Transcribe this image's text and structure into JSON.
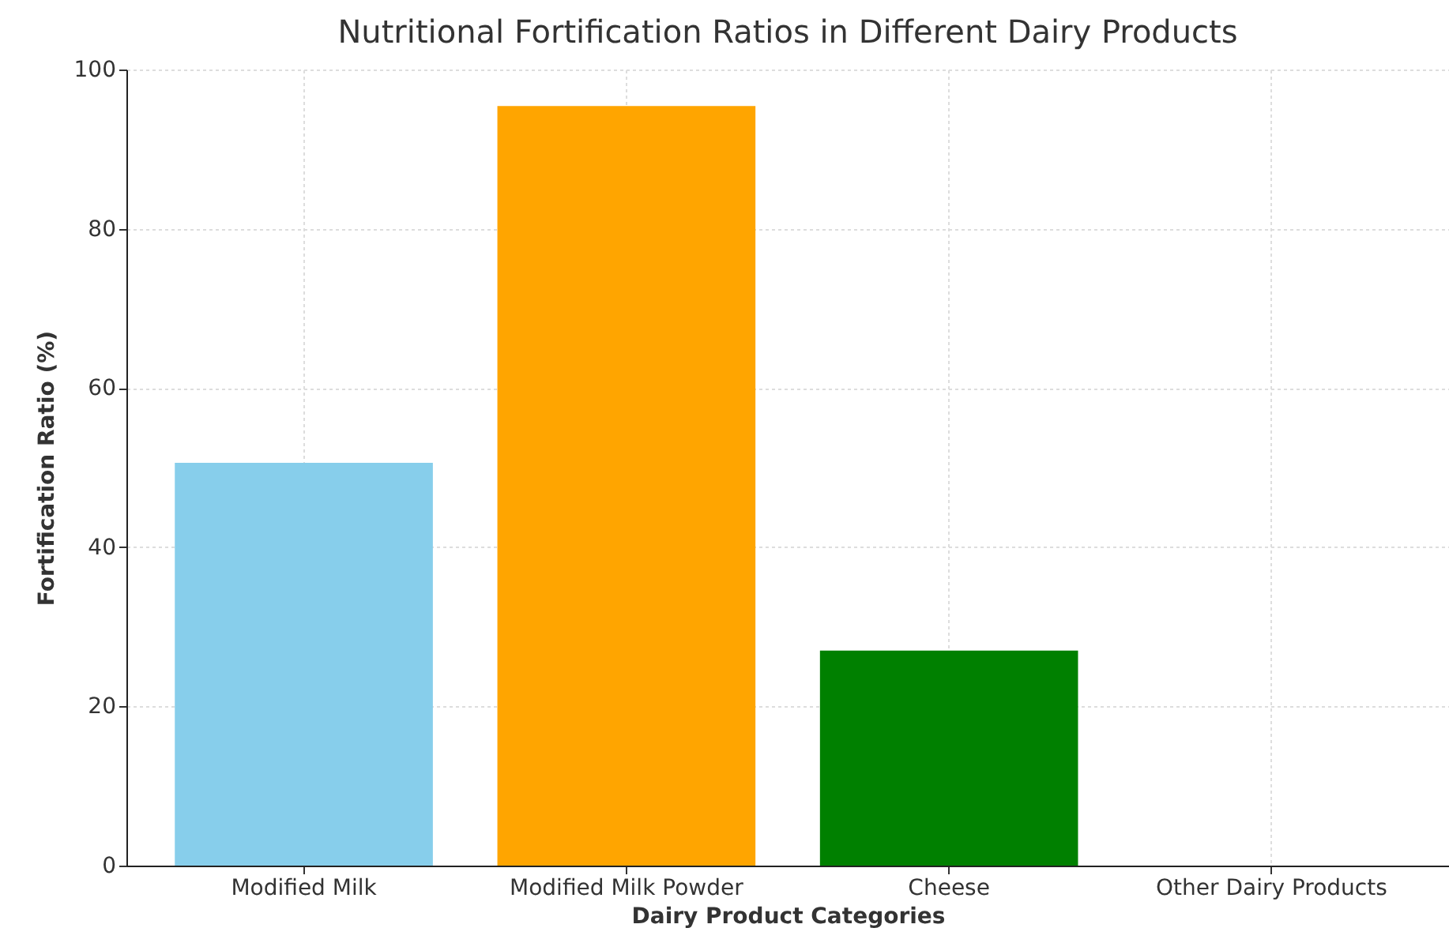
{
  "chart_data": {
    "type": "bar",
    "title": "Nutritional Fortification Ratios in Different Dairy Products",
    "xlabel": "Dairy Product Categories",
    "ylabel": "Fortification Ratio (%)",
    "categories": [
      "Modified Milk",
      "Modified Milk Powder",
      "Cheese",
      "Other Dairy Products"
    ],
    "values": [
      50.6,
      95.4,
      27.0,
      0
    ],
    "colors": [
      "#87ceeb",
      "#ffa500",
      "#008000",
      "#ff0000"
    ],
    "ylim": [
      0,
      100
    ],
    "yticks": [
      0,
      20,
      40,
      60,
      80,
      100
    ],
    "grid": true
  }
}
